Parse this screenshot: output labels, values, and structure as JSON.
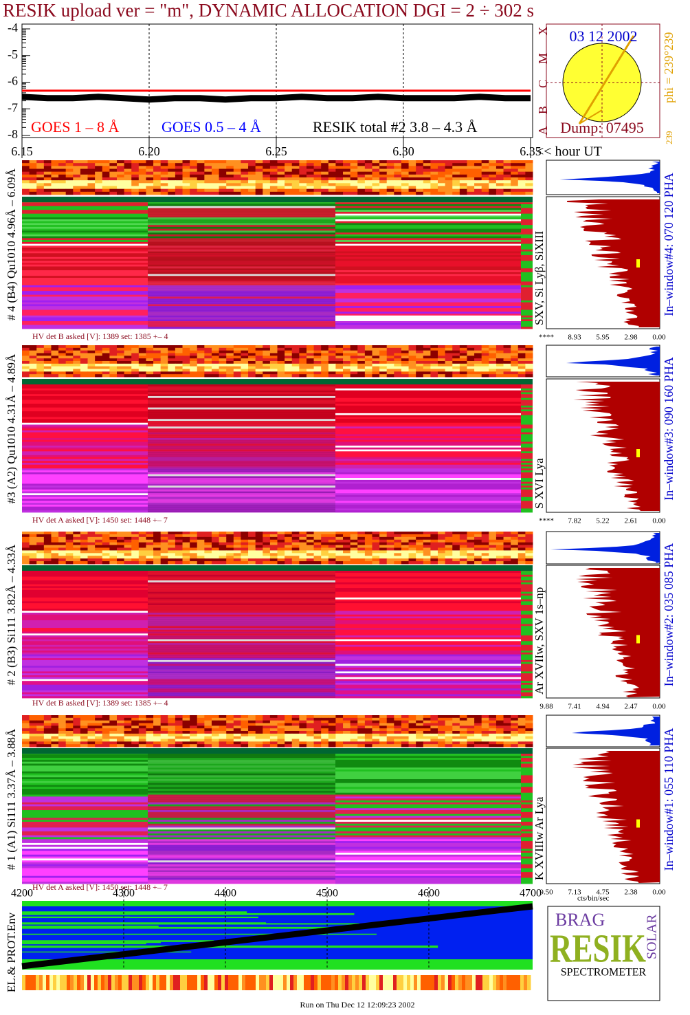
{
  "chart_data": [
    {
      "type": "line",
      "title": "RESIK upload ver = \"m\", DYNAMIC ALLOCATION  DGI =   2 ÷ 302 s",
      "x_label": "<< hour UT",
      "x": [
        6.15,
        6.16,
        6.17,
        6.18,
        6.19,
        6.2,
        6.21,
        6.22,
        6.23,
        6.24,
        6.25,
        6.26,
        6.27,
        6.28,
        6.29,
        6.3,
        6.31,
        6.32,
        6.33,
        6.34,
        6.35
      ],
      "xlim": [
        6.15,
        6.35
      ],
      "xticks": [
        6.15,
        {
          "value": 6.2,
          "label": "6.20"
        },
        6.25,
        {
          "value": 6.3,
          "label": "6.30"
        },
        6.35
      ],
      "ylim": [
        -8,
        -4
      ],
      "yticks": [
        -8,
        -7,
        -6,
        -5,
        -4
      ],
      "grid": true,
      "series": [
        {
          "name": "GOES 1 – 8 Å",
          "color": "#ff0000",
          "values": [
            -6.32,
            -6.32,
            -6.32,
            -6.32,
            -6.32,
            -6.32,
            -6.32,
            -6.32,
            -6.32,
            -6.32,
            -6.32,
            -6.32,
            -6.32,
            -6.32,
            -6.32,
            -6.32,
            -6.32,
            -6.32,
            -6.32,
            -6.32,
            -6.32
          ]
        },
        {
          "name": "GOES 0.5 – 4 Å",
          "color": "#0000ff",
          "values": [
            null,
            null,
            null,
            null,
            null,
            null,
            null,
            null,
            null,
            null,
            null,
            null,
            null,
            null,
            null,
            null,
            null,
            null,
            null,
            null,
            null
          ]
        },
        {
          "name": "RESIK total #2  3.8 – 4.3 Å",
          "color": "#000000",
          "values": [
            -6.55,
            -6.6,
            -6.6,
            -6.55,
            -6.6,
            -6.65,
            -6.6,
            -6.6,
            -6.65,
            -6.6,
            -6.6,
            -6.55,
            -6.6,
            -6.6,
            -6.55,
            -6.6,
            -6.6,
            -6.6,
            -6.55,
            -6.6,
            -6.6
          ]
        }
      ],
      "class_labels": [
        "A",
        "B",
        "C",
        "M",
        "X"
      ]
    },
    {
      "type": "line",
      "y_label": "EL.& PROT.Env",
      "xlim": [
        4200,
        4700
      ],
      "xticks": [
        4200,
        4300,
        4400,
        4500,
        4600,
        4700
      ],
      "grid": true
    }
  ],
  "sun": {
    "date": "03 12 2002",
    "phi": "phi = 239°239",
    "angle": "239",
    "dump": "Dump: 07495"
  },
  "detectors": [
    {
      "left": "# 4 (B4) Qu1010 4.96Å – 6.09Å",
      "right": "SXV, Si Lyβ, SiXIII",
      "hv": "HV det B asked [V]:  1389 set:  1385 +–    4",
      "ticks": [
        "****",
        "8.93",
        "5.95",
        "2.98",
        "0.00"
      ],
      "window": "In–window#4:  070 120 PHA"
    },
    {
      "left": "#3 (A2) Qu1010  4.31Å – 4.89Å",
      "right": "S XVI Lya",
      "hv": "HV det A asked [V]:  1450 set:  1448 +–    7",
      "ticks": [
        "****",
        "7.82",
        "5.22",
        "2.61",
        "0.00"
      ],
      "window": "In–window#3:  090 160 PHA"
    },
    {
      "left": "# 2 (B3) Si111  3.82Å – 4.33Å",
      "right": "Ar XVIIw,  SXV 1s–np",
      "hv": "HV det B asked [V]:  1389 set:  1385 +–    4",
      "ticks": [
        "9.88",
        "7.41",
        "4.94",
        "2.47",
        "0.00"
      ],
      "window": "In–window#2:  035 085 PHA"
    },
    {
      "left": "# 1 (A1) Si111  3.37Å – 3.88Å",
      "right": "K XVIIIw  Ar Lya",
      "hv": "HV det A asked [V]:  1450 set:  1448 +–    7",
      "ticks": [
        "9.50",
        "7.13",
        "4.75",
        "2.38",
        "0.00"
      ],
      "window": "In–window#1:  055 110 PHA"
    }
  ],
  "spectrum_unit": "cts/bin/sec",
  "logo": {
    "top": "BRAG",
    "main": "RESIK",
    "side": "SOLAR",
    "caption": "SPECTROMETER"
  },
  "footer": "Run on Thu Dec 12 12:09:23 2002"
}
